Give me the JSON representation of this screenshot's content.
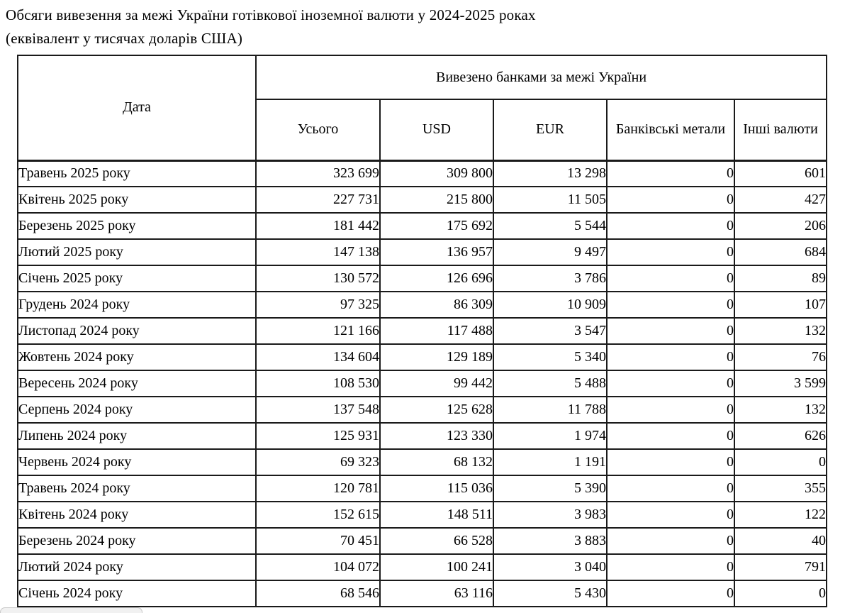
{
  "title": {
    "line1": "Обсяги вивезення за межі України готівкової іноземної валюти у 2024-2025 роках",
    "line2": "(еквівалент у тисячах доларів США)"
  },
  "table": {
    "date_header": "Дата",
    "group_header": "Вивезено банками за межі України",
    "columns": [
      "Усього",
      "USD",
      "EUR",
      "Банківські метали",
      "Інші валюти"
    ],
    "rows": [
      [
        "Травень 2025 року",
        "323 699",
        "309 800",
        "13 298",
        "0",
        "601"
      ],
      [
        "Квітень 2025 року",
        "227 731",
        "215 800",
        "11 505",
        "0",
        "427"
      ],
      [
        "Березень 2025 року",
        "181 442",
        "175 692",
        "5 544",
        "0",
        "206"
      ],
      [
        "Лютий 2025 року",
        "147 138",
        "136 957",
        "9 497",
        "0",
        "684"
      ],
      [
        "Січень 2025 року",
        "130 572",
        "126 696",
        "3 786",
        "0",
        "89"
      ],
      [
        "Грудень 2024 року",
        "97 325",
        "86 309",
        "10 909",
        "0",
        "107"
      ],
      [
        "Листопад 2024 року",
        "121 166",
        "117 488",
        "3 547",
        "0",
        "132"
      ],
      [
        "Жовтень 2024 року",
        "134 604",
        "129 189",
        "5 340",
        "0",
        "76"
      ],
      [
        "Вересень 2024 року",
        "108 530",
        "99 442",
        "5 488",
        "0",
        "3 599"
      ],
      [
        "Серпень 2024 року",
        "137 548",
        "125 628",
        "11 788",
        "0",
        "132"
      ],
      [
        "Липень 2024 року",
        "125 931",
        "123 330",
        "1 974",
        "0",
        "626"
      ],
      [
        "Червень 2024 року",
        "69 323",
        "68 132",
        "1 191",
        "0",
        "0"
      ],
      [
        "Травень 2024 року",
        "120 781",
        "115 036",
        "5 390",
        "0",
        "355"
      ],
      [
        "Квітень 2024 року",
        "152 615",
        "148 511",
        "3 983",
        "0",
        "122"
      ],
      [
        "Березень 2024 року",
        "70 451",
        "66 528",
        "3 883",
        "0",
        "40"
      ],
      [
        "Лютий 2024 року",
        "104 072",
        "100 241",
        "3 040",
        "0",
        "791"
      ],
      [
        "Січень 2024 року",
        "68 546",
        "63 116",
        "5 430",
        "0",
        "0"
      ]
    ]
  }
}
